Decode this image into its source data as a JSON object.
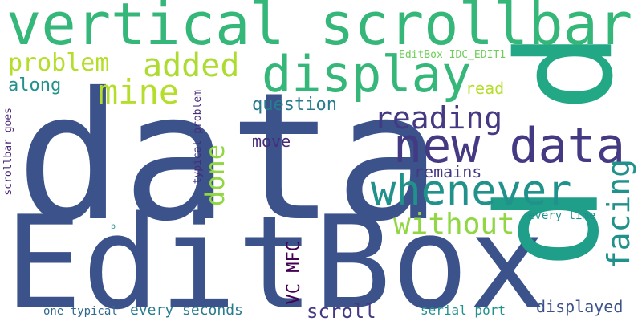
{
  "words": {
    "data": "data",
    "editbox": "EditBox",
    "p_big": "p",
    "vertical_scrollbar": "vertical scrollbar",
    "display": "display",
    "new_data": "new data",
    "whenever": "whenever",
    "reading": "reading",
    "added": "added",
    "mine": "mine",
    "problem": "problem",
    "without": "without",
    "facing": "facing",
    "done": "done",
    "question": "question",
    "move": "move",
    "remains": "remains",
    "read": "read",
    "along": "along",
    "editbox_idc_edit1": "EditBox IDC_EDIT1",
    "typical_problem": "typical problem",
    "scrollbar_goes": "scrollbar goes",
    "vc_mfc": "VC MFC",
    "scroll": "scroll",
    "every_seconds": "every seconds",
    "one_typical": "one typical",
    "serial_port": "serial port",
    "displayed": "displayed",
    "every_time": "every time",
    "p_small": "p",
    "p_right": "p"
  },
  "colors": {
    "background": "#ffffff",
    "navy": "#3b528b",
    "indigo": "#443983",
    "dark_purple": "#472c7a",
    "deep_purple": "#440154",
    "purple": "#482475",
    "blue": "#31688e",
    "teal": "#21918c",
    "teal_dark": "#287c8e",
    "teal_green": "#1f9e89",
    "green": "#35b779",
    "light_green": "#6ece58",
    "lime": "#b5de2b",
    "yellow_green": "#addc30",
    "pale_green": "#90d743"
  }
}
